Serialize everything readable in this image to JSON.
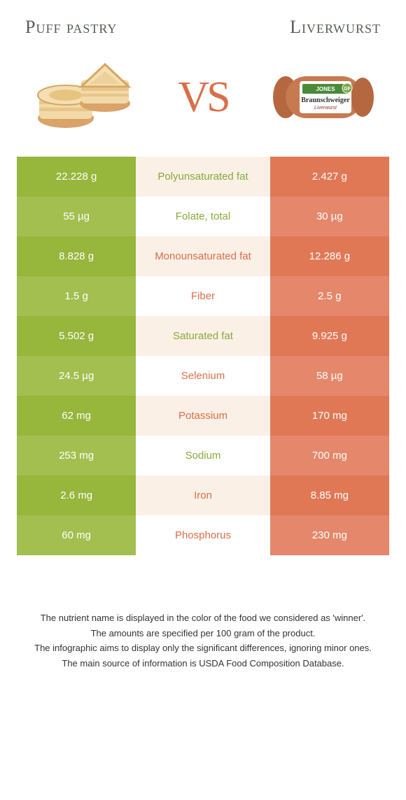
{
  "header": {
    "left_title": "Puff pastry",
    "right_title": "Liverwurst",
    "vs_label": "VS"
  },
  "colors": {
    "green": "#96b63c",
    "green_alt": "#a2bf4f",
    "orange": "#e07856",
    "orange_alt": "#e4876a",
    "mid_bg": "#faf0e6",
    "label_green": "#8aa83a",
    "label_orange": "#d96f4a"
  },
  "rows": [
    {
      "left": "22.228 g",
      "label": "Polyunsaturated fat",
      "right": "2.427 g",
      "winner": "left"
    },
    {
      "left": "55 µg",
      "label": "Folate, total",
      "right": "30 µg",
      "winner": "left"
    },
    {
      "left": "8.828 g",
      "label": "Monounsaturated fat",
      "right": "12.286 g",
      "winner": "right"
    },
    {
      "left": "1.5 g",
      "label": "Fiber",
      "right": "2.5 g",
      "winner": "right"
    },
    {
      "left": "5.502 g",
      "label": "Saturated fat",
      "right": "9.925 g",
      "winner": "left"
    },
    {
      "left": "24.5 µg",
      "label": "Selenium",
      "right": "58 µg",
      "winner": "right"
    },
    {
      "left": "62 mg",
      "label": "Potassium",
      "right": "170 mg",
      "winner": "right"
    },
    {
      "left": "253 mg",
      "label": "Sodium",
      "right": "700 mg",
      "winner": "left"
    },
    {
      "left": "2.6 mg",
      "label": "Iron",
      "right": "8.85 mg",
      "winner": "right"
    },
    {
      "left": "60 mg",
      "label": "Phosphorus",
      "right": "230 mg",
      "winner": "right"
    }
  ],
  "footnotes": [
    "The nutrient name is displayed in the color of the food we considered as 'winner'.",
    "The amounts are specified per 100 gram of the product.",
    "The infographic aims to display only the significant differences, ignoring minor ones.",
    "The main source of information is USDA Food Composition Database."
  ]
}
